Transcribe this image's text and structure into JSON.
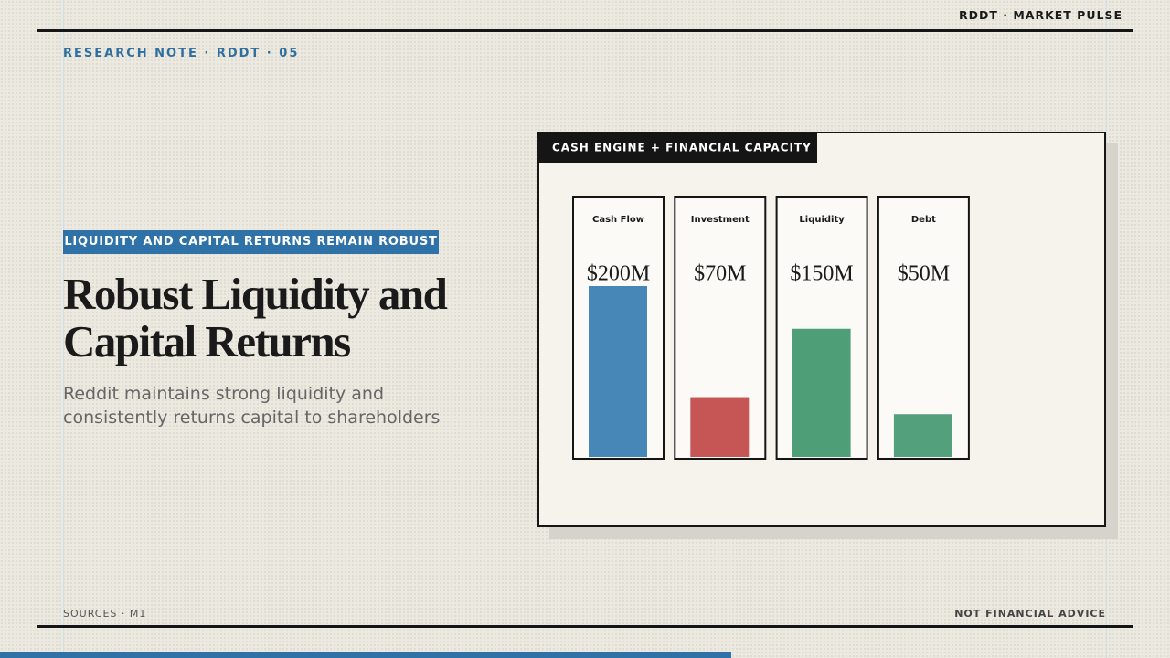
{
  "header": {
    "brand": "RDDT · MARKET PULSE",
    "kicker": "RESEARCH NOTE · RDDT · 05"
  },
  "tag": "LIQUIDITY AND CAPITAL RETURNS REMAIN ROBUST",
  "title_lines": [
    "Robust Liquidity and",
    "Capital Returns"
  ],
  "subtitle_lines": [
    "Reddit maintains strong liquidity and",
    "consistently returns capital to shareholders"
  ],
  "chart_data": {
    "type": "bar",
    "title": "CASH ENGINE + FINANCIAL CAPACITY",
    "categories": [
      "Cash Flow",
      "Investment",
      "Liquidity",
      "Debt"
    ],
    "values": [
      200,
      70,
      150,
      50
    ],
    "value_labels": [
      "$200M",
      "$70M",
      "$150M",
      "$50M"
    ],
    "colors": [
      "#4687b8",
      "#c65656",
      "#4e9e78",
      "#52a07c"
    ]
  },
  "footer": {
    "sources": "SOURCES · M1",
    "disclaimer": "NOT FINANCIAL ADVICE"
  }
}
